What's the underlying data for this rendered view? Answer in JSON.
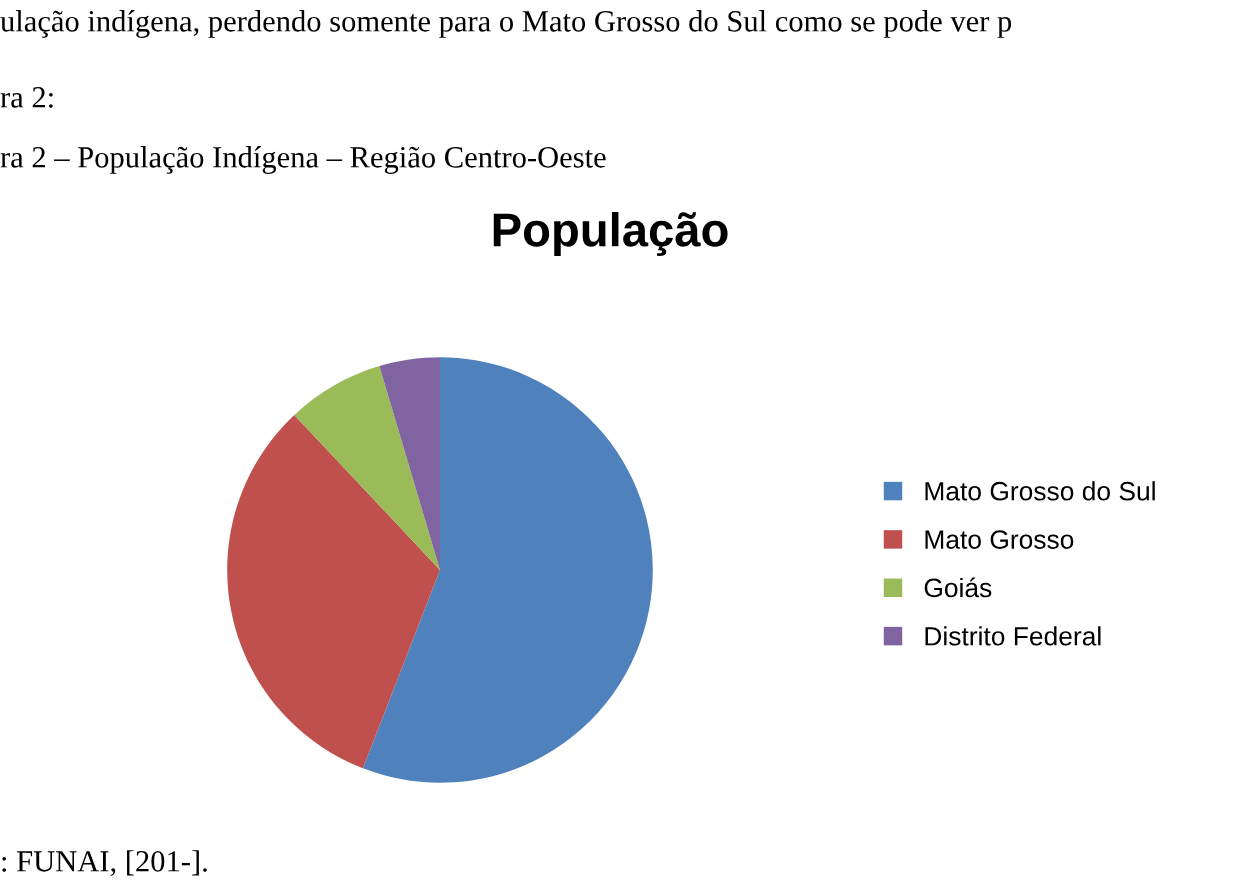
{
  "chart_data": {
    "type": "pie",
    "title": "População",
    "categories": [
      "Mato Grosso do Sul",
      "Mato Grosso",
      "Goiás",
      "Distrito Federal"
    ],
    "values": [
      55.9,
      32.1,
      7.4,
      4.6
    ],
    "colors": [
      "#4f81bd",
      "#c0504d",
      "#9bbb59",
      "#8064a2"
    ],
    "legend": "right",
    "annotations": [
      "ulação indígena, perdendo somente para o Mato Grosso do Sul como se pode ver p",
      "ra 2:",
      "ra 2 – População Indígena – Região Centro-Oeste",
      ": FUNAI, [201-]."
    ]
  }
}
